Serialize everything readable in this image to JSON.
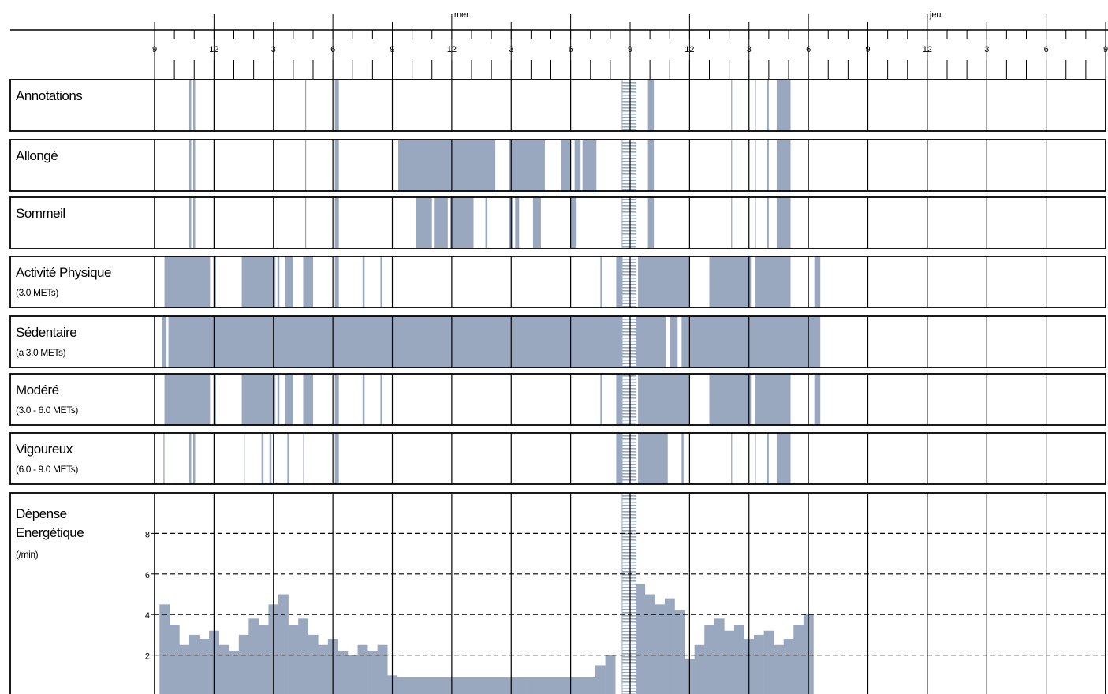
{
  "chart_data": {
    "type": "timeline",
    "color": "#9aa8bf",
    "xlim": [
      0,
      48
    ],
    "xticks": [
      {
        "value": 0,
        "label": "9"
      },
      {
        "value": 3,
        "label": "12"
      },
      {
        "value": 6,
        "label": "3"
      },
      {
        "value": 9,
        "label": "6"
      },
      {
        "value": 12,
        "label": "9"
      },
      {
        "value": 15,
        "label": "12"
      },
      {
        "value": 18,
        "label": "3"
      },
      {
        "value": 21,
        "label": "6"
      },
      {
        "value": 24,
        "label": "9"
      },
      {
        "value": 27,
        "label": "12"
      },
      {
        "value": 30,
        "label": "3"
      },
      {
        "value": 33,
        "label": "6"
      },
      {
        "value": 36,
        "label": "9"
      },
      {
        "value": 39,
        "label": "12"
      },
      {
        "value": 42,
        "label": "3"
      },
      {
        "value": 45,
        "label": "6"
      },
      {
        "value": 48,
        "label": "9"
      }
    ],
    "xminorticks": [
      0,
      1,
      2,
      3,
      4,
      5,
      6,
      7,
      8,
      9,
      10,
      11,
      12,
      13,
      14,
      15,
      16,
      17,
      18,
      19,
      20,
      21,
      22,
      23,
      24,
      25,
      26,
      27,
      28,
      29,
      30,
      31,
      32,
      33,
      34,
      35,
      36,
      37,
      38,
      39,
      40,
      41,
      42,
      43,
      44,
      45,
      46,
      47,
      48
    ],
    "day_labels": [
      {
        "value": 15,
        "label": "mer."
      },
      {
        "value": 39,
        "label": "jeu."
      }
    ],
    "gap": [
      23.6,
      24.3
    ],
    "rows": [
      {
        "label": "Annotations",
        "intervals": [
          [
            1.75,
            1.85
          ],
          [
            1.95,
            2.05
          ],
          [
            7.6,
            7.65
          ],
          [
            9.1,
            9.3
          ],
          [
            24.9,
            25.2
          ],
          [
            29.1,
            29.15
          ],
          [
            30.3,
            30.35
          ],
          [
            30.9,
            31.0
          ],
          [
            31.4,
            32.1
          ]
        ]
      },
      {
        "label": "Allongé",
        "intervals": [
          [
            1.75,
            1.85
          ],
          [
            1.95,
            2.05
          ],
          [
            7.6,
            7.65
          ],
          [
            9.1,
            9.3
          ],
          [
            12.3,
            17.2
          ],
          [
            17.9,
            19.7
          ],
          [
            20.5,
            21.0
          ],
          [
            21.2,
            21.5
          ],
          [
            21.6,
            22.3
          ],
          [
            24.9,
            25.2
          ],
          [
            29.1,
            29.15
          ],
          [
            30.3,
            30.35
          ],
          [
            30.9,
            31.0
          ],
          [
            31.4,
            32.1
          ]
        ]
      },
      {
        "label": "Sommeil",
        "intervals": [
          [
            1.75,
            1.85
          ],
          [
            1.95,
            2.05
          ],
          [
            7.6,
            7.65
          ],
          [
            9.1,
            9.3
          ],
          [
            13.2,
            14.0
          ],
          [
            14.1,
            14.8
          ],
          [
            14.9,
            16.1
          ],
          [
            16.7,
            16.8
          ],
          [
            17.9,
            18.1
          ],
          [
            18.2,
            18.4
          ],
          [
            19.1,
            19.5
          ],
          [
            21.0,
            21.3
          ],
          [
            24.9,
            25.2
          ],
          [
            29.1,
            29.15
          ],
          [
            30.3,
            30.35
          ],
          [
            30.9,
            31.0
          ],
          [
            31.4,
            32.1
          ]
        ]
      },
      {
        "label": "Activité Physique",
        "sublabel": "(3.0 METs)",
        "intervals": [
          [
            0.5,
            2.8
          ],
          [
            3.0,
            3.1
          ],
          [
            4.4,
            6.1
          ],
          [
            6.2,
            6.3
          ],
          [
            6.6,
            7.0
          ],
          [
            7.5,
            8.0
          ],
          [
            9.1,
            9.3
          ],
          [
            10.5,
            10.6
          ],
          [
            11.4,
            11.5
          ],
          [
            22.5,
            22.6
          ],
          [
            23.3,
            23.6
          ],
          [
            24.4,
            27.0
          ],
          [
            28.0,
            30.1
          ],
          [
            30.3,
            32.1
          ],
          [
            33.3,
            33.6
          ]
        ]
      },
      {
        "label": "Sédentaire",
        "sublabel": "(a 3.0 METs)",
        "intervals": [
          [
            0.4,
            0.6
          ],
          [
            0.7,
            23.6
          ],
          [
            24.3,
            25.8
          ],
          [
            26.0,
            26.4
          ],
          [
            26.6,
            33.6
          ]
        ]
      },
      {
        "label": "Modéré",
        "sublabel": "(3.0 - 6.0 METs)",
        "intervals": [
          [
            0.5,
            2.8
          ],
          [
            3.0,
            3.1
          ],
          [
            4.4,
            6.1
          ],
          [
            6.2,
            6.3
          ],
          [
            6.6,
            7.0
          ],
          [
            7.5,
            8.0
          ],
          [
            9.1,
            9.3
          ],
          [
            10.5,
            10.6
          ],
          [
            11.4,
            11.5
          ],
          [
            22.5,
            22.6
          ],
          [
            23.3,
            23.6
          ],
          [
            24.4,
            27.0
          ],
          [
            28.0,
            30.1
          ],
          [
            30.3,
            32.1
          ],
          [
            33.3,
            33.6
          ]
        ]
      },
      {
        "label": "Vigoureux",
        "sublabel": "(6.0 - 9.0 METs)",
        "intervals": [
          [
            0.45,
            0.5
          ],
          [
            1.75,
            1.85
          ],
          [
            1.95,
            2.05
          ],
          [
            4.5,
            4.55
          ],
          [
            5.4,
            5.5
          ],
          [
            5.8,
            5.9
          ],
          [
            6.7,
            6.8
          ],
          [
            7.5,
            7.55
          ],
          [
            9.1,
            9.3
          ],
          [
            23.3,
            23.6
          ],
          [
            24.4,
            25.9
          ],
          [
            26.6,
            26.7
          ],
          [
            29.1,
            29.15
          ],
          [
            30.3,
            30.35
          ],
          [
            30.9,
            31.0
          ],
          [
            31.4,
            32.1
          ]
        ]
      }
    ],
    "energy": {
      "type": "bar",
      "label_lines": [
        "Dépense",
        "Energétique"
      ],
      "sublabel": "(/min)",
      "ylim": [
        0,
        10
      ],
      "yticks": [
        2,
        4,
        6,
        8
      ],
      "x": [
        0.5,
        1,
        1.5,
        2,
        2.5,
        3,
        3.5,
        4,
        4.5,
        5,
        5.5,
        6,
        6.5,
        7,
        7.5,
        8,
        8.5,
        9,
        9.5,
        10,
        10.5,
        11,
        11.5,
        12,
        12.5,
        13,
        13.5,
        14,
        14.5,
        15,
        15.5,
        16,
        16.5,
        17,
        17.5,
        18,
        18.5,
        19,
        19.5,
        20,
        20.5,
        21,
        21.5,
        22,
        22.5,
        23,
        23.5,
        24,
        24.5,
        25,
        25.5,
        26,
        26.5,
        27,
        27.5,
        28,
        28.5,
        29,
        29.5,
        30,
        30.5,
        31,
        31.5,
        32,
        32.5,
        33
      ],
      "values": [
        4.5,
        3.5,
        2.5,
        3,
        2.8,
        3.2,
        2.5,
        2.2,
        3,
        3.8,
        3.5,
        4.5,
        5,
        3.5,
        3.8,
        3,
        2.5,
        2.8,
        2.2,
        2,
        2.5,
        2.2,
        2.5,
        1,
        0.9,
        0.9,
        0.9,
        0.9,
        0.9,
        0.9,
        0.9,
        0.9,
        0.9,
        0.9,
        0.9,
        0.9,
        0.9,
        0.9,
        0.9,
        0.9,
        0.9,
        0.9,
        0.9,
        0.9,
        1.5,
        2,
        null,
        null,
        5.5,
        5,
        4.5,
        4.8,
        4.2,
        1.8,
        2.5,
        3.5,
        3.8,
        3.2,
        3.5,
        2.8,
        3,
        3.2,
        2.5,
        2.8,
        3.5,
        4
      ]
    }
  }
}
